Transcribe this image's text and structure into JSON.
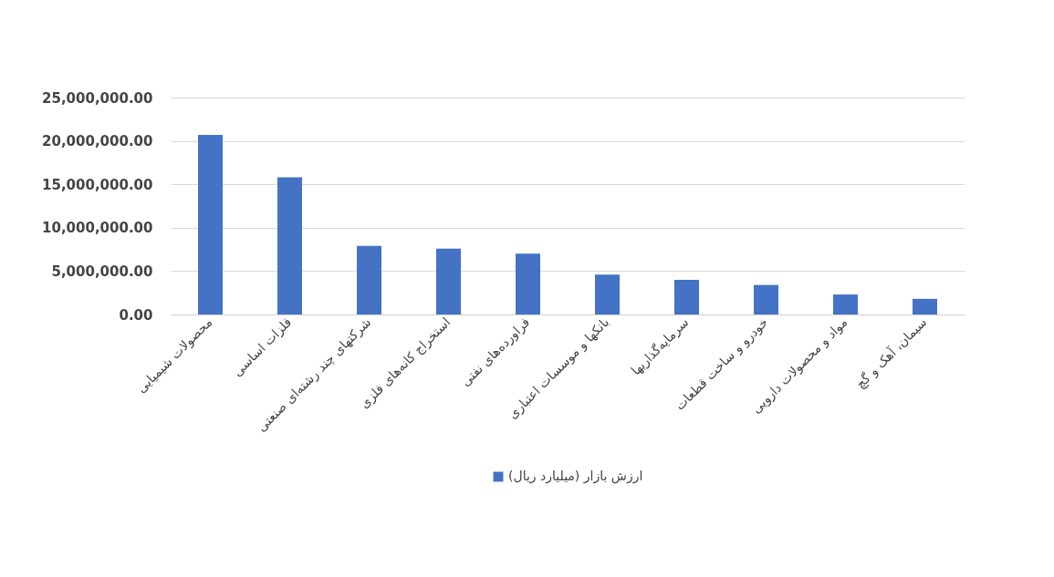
{
  "chart_data": {
    "type": "bar",
    "categories": [
      "محصولات شیمیایی",
      "فلزات اساسی",
      "شرکتهای چند رشته‌ای صنعتی",
      "استخراج کانه‌های فلزی",
      "فراورده‌های نفتی",
      "بانکها و موسسات اعتباری",
      "سرمایه‌گذاریها",
      "خودرو و ساخت قطعات",
      "مواد و محصولات دارویی",
      "سیمان، آهک و گچ"
    ],
    "series": [
      {
        "name": "ارزش بازار (میلیارد ریال)",
        "color": "#4472c4",
        "values": [
          20700000,
          15800000,
          7900000,
          7600000,
          7000000,
          4600000,
          4000000,
          3400000,
          2300000,
          1800000
        ]
      }
    ],
    "ylim": [
      0,
      25000000
    ],
    "yticks": [
      {
        "value": 0,
        "label": "0.00"
      },
      {
        "value": 5000000,
        "label": "5,000,000.00"
      },
      {
        "value": 10000000,
        "label": "10,000,000.00"
      },
      {
        "value": 15000000,
        "label": "15,000,000.00"
      },
      {
        "value": 20000000,
        "label": "20,000,000.00"
      },
      {
        "value": 25000000,
        "label": "25,000,000.00"
      }
    ],
    "grid": "y",
    "legend": "bottom"
  }
}
